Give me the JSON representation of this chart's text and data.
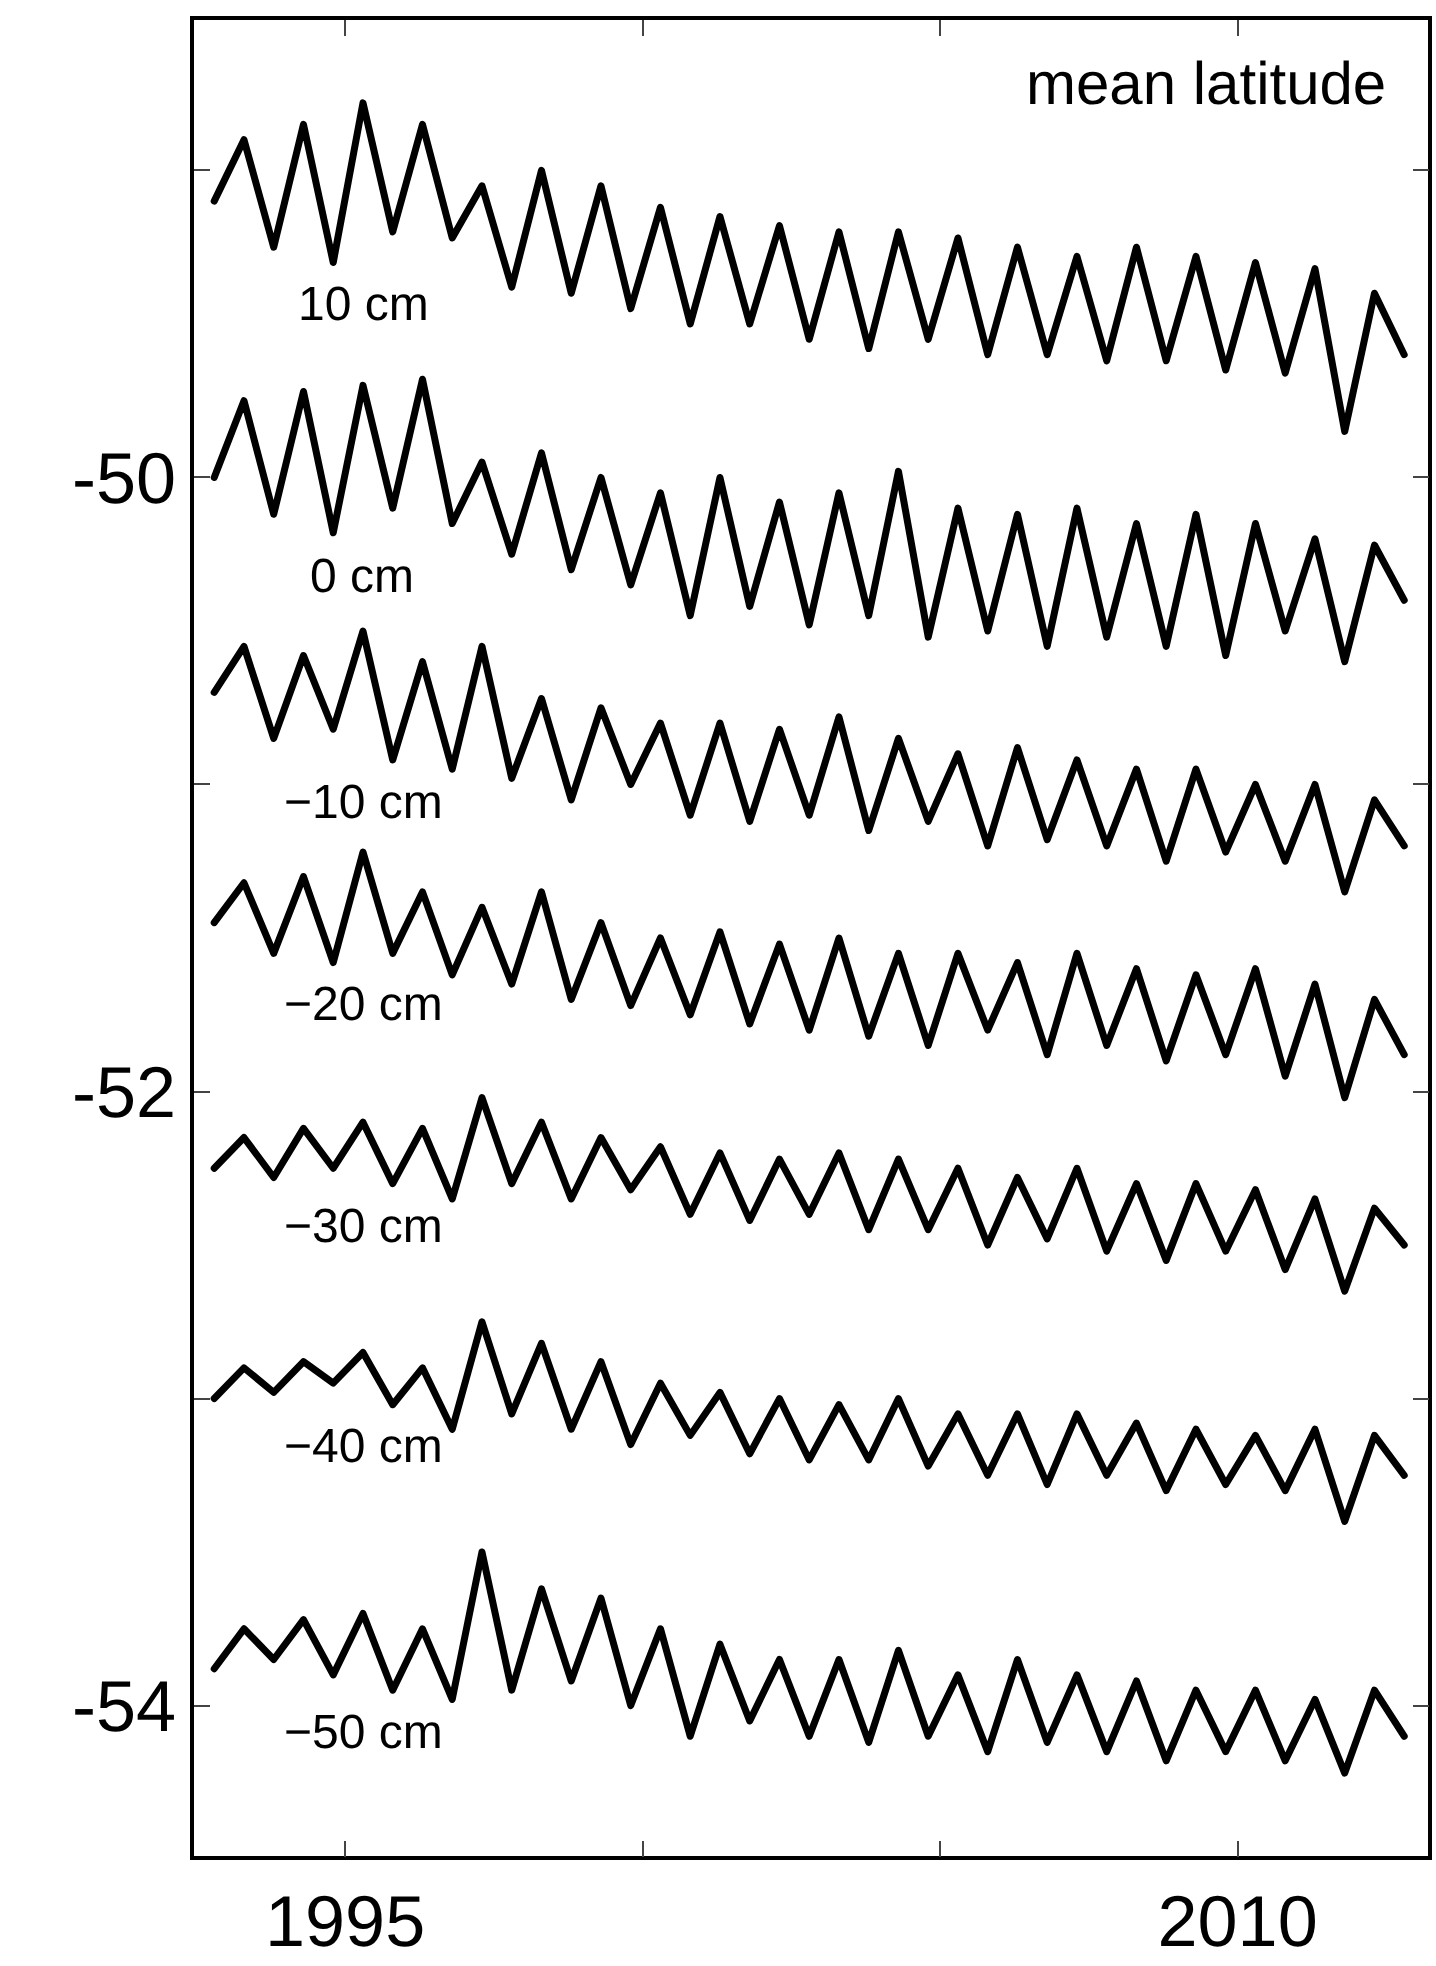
{
  "chart_data": {
    "type": "line",
    "title": "mean latitude",
    "x": [
      1992.8,
      1993.3,
      1993.8,
      1994.3,
      1994.8,
      1995.3,
      1995.8,
      1996.3,
      1996.8,
      1997.3,
      1997.8,
      1998.3,
      1998.8,
      1999.3,
      1999.8,
      2000.3,
      2000.8,
      2001.3,
      2001.8,
      2002.3,
      2002.8,
      2003.3,
      2003.8,
      2004.3,
      2004.8,
      2005.3,
      2005.8,
      2006.3,
      2006.8,
      2007.3,
      2007.8,
      2008.3,
      2008.8,
      2009.3,
      2009.8,
      2010.3,
      2010.8,
      2011.3,
      2011.8,
      2012.3,
      2012.8
    ],
    "series": [
      {
        "name": "10 cm",
        "color": "#000000",
        "values": [
          -49.1,
          -48.9,
          -49.25,
          -48.85,
          -49.3,
          -48.78,
          -49.2,
          -48.85,
          -49.22,
          -49.05,
          -49.38,
          -49.0,
          -49.4,
          -49.05,
          -49.45,
          -49.12,
          -49.5,
          -49.15,
          -49.5,
          -49.18,
          -49.55,
          -49.2,
          -49.58,
          -49.2,
          -49.55,
          -49.22,
          -49.6,
          -49.25,
          -49.6,
          -49.28,
          -49.62,
          -49.25,
          -49.62,
          -49.28,
          -49.65,
          -49.3,
          -49.66,
          -49.32,
          -49.85,
          -49.4,
          -49.6
        ]
      },
      {
        "name": "0 cm",
        "color": "#000000",
        "values": [
          -50.0,
          -49.75,
          -50.12,
          -49.72,
          -50.18,
          -49.7,
          -50.1,
          -49.68,
          -50.15,
          -49.95,
          -50.25,
          -49.92,
          -50.3,
          -50.0,
          -50.35,
          -50.05,
          -50.45,
          -50.0,
          -50.42,
          -50.08,
          -50.48,
          -50.05,
          -50.45,
          -49.98,
          -50.52,
          -50.1,
          -50.5,
          -50.12,
          -50.55,
          -50.1,
          -50.52,
          -50.15,
          -50.55,
          -50.12,
          -50.58,
          -50.15,
          -50.5,
          -50.2,
          -50.6,
          -50.22,
          -50.4
        ]
      },
      {
        "name": "−10 cm",
        "color": "#000000",
        "values": [
          -50.7,
          -50.55,
          -50.85,
          -50.58,
          -50.82,
          -50.5,
          -50.92,
          -50.6,
          -50.95,
          -50.55,
          -50.98,
          -50.72,
          -51.05,
          -50.75,
          -51.0,
          -50.8,
          -51.1,
          -50.8,
          -51.12,
          -50.82,
          -51.1,
          -50.78,
          -51.15,
          -50.85,
          -51.12,
          -50.9,
          -51.2,
          -50.88,
          -51.18,
          -50.92,
          -51.2,
          -50.95,
          -51.25,
          -50.95,
          -51.22,
          -51.0,
          -51.25,
          -51.0,
          -51.35,
          -51.05,
          -51.2
        ]
      },
      {
        "name": "−20 cm",
        "color": "#000000",
        "values": [
          -51.45,
          -51.32,
          -51.55,
          -51.3,
          -51.58,
          -51.22,
          -51.55,
          -51.35,
          -51.62,
          -51.4,
          -51.65,
          -51.35,
          -51.7,
          -51.45,
          -51.72,
          -51.5,
          -51.75,
          -51.48,
          -51.78,
          -51.52,
          -51.8,
          -51.5,
          -51.82,
          -51.55,
          -51.85,
          -51.55,
          -51.8,
          -51.58,
          -51.88,
          -51.55,
          -51.85,
          -51.6,
          -51.9,
          -51.62,
          -51.88,
          -51.6,
          -51.95,
          -51.65,
          -52.02,
          -51.7,
          -51.88
        ]
      },
      {
        "name": "−30 cm",
        "color": "#000000",
        "values": [
          -52.25,
          -52.15,
          -52.28,
          -52.12,
          -52.25,
          -52.1,
          -52.3,
          -52.12,
          -52.35,
          -52.02,
          -52.3,
          -52.1,
          -52.35,
          -52.15,
          -52.32,
          -52.18,
          -52.4,
          -52.2,
          -52.42,
          -52.22,
          -52.4,
          -52.2,
          -52.45,
          -52.22,
          -52.45,
          -52.25,
          -52.5,
          -52.28,
          -52.48,
          -52.25,
          -52.52,
          -52.3,
          -52.55,
          -52.3,
          -52.52,
          -52.32,
          -52.58,
          -52.35,
          -52.65,
          -52.38,
          -52.5
        ]
      },
      {
        "name": "−40 cm",
        "color": "#000000",
        "values": [
          -53.0,
          -52.9,
          -52.98,
          -52.88,
          -52.95,
          -52.85,
          -53.02,
          -52.9,
          -53.1,
          -52.75,
          -53.05,
          -52.82,
          -53.1,
          -52.88,
          -53.15,
          -52.95,
          -53.12,
          -52.98,
          -53.18,
          -53.0,
          -53.2,
          -53.02,
          -53.2,
          -53.0,
          -53.22,
          -53.05,
          -53.25,
          -53.05,
          -53.28,
          -53.05,
          -53.25,
          -53.08,
          -53.3,
          -53.1,
          -53.28,
          -53.12,
          -53.3,
          -53.1,
          -53.4,
          -53.12,
          -53.25
        ]
      },
      {
        "name": "−50 cm",
        "color": "#000000",
        "values": [
          -53.88,
          -53.75,
          -53.85,
          -53.72,
          -53.9,
          -53.7,
          -53.95,
          -53.75,
          -53.98,
          -53.5,
          -53.95,
          -53.62,
          -53.92,
          -53.65,
          -54.0,
          -53.75,
          -54.1,
          -53.8,
          -54.05,
          -53.85,
          -54.1,
          -53.85,
          -54.12,
          -53.82,
          -54.1,
          -53.9,
          -54.15,
          -53.85,
          -54.12,
          -53.9,
          -54.15,
          -53.92,
          -54.18,
          -53.95,
          -54.15,
          -53.95,
          -54.18,
          -53.98,
          -54.22,
          -53.95,
          -54.1
        ]
      }
    ],
    "xlim": [
      1992.46,
      2013.2
    ],
    "xticks": [
      1995,
      {
        "value": 2000,
        "label": null
      },
      {
        "value": 2005,
        "label": null
      },
      2010
    ],
    "ylim": [
      -54.49,
      -48.51
    ],
    "yticks": [
      {
        "value": -49,
        "label": null
      },
      -50,
      {
        "value": -51,
        "label": null
      },
      -52,
      {
        "value": -53,
        "label": null
      },
      -54
    ],
    "legend": false,
    "marker": "none",
    "line_style": "solid"
  }
}
